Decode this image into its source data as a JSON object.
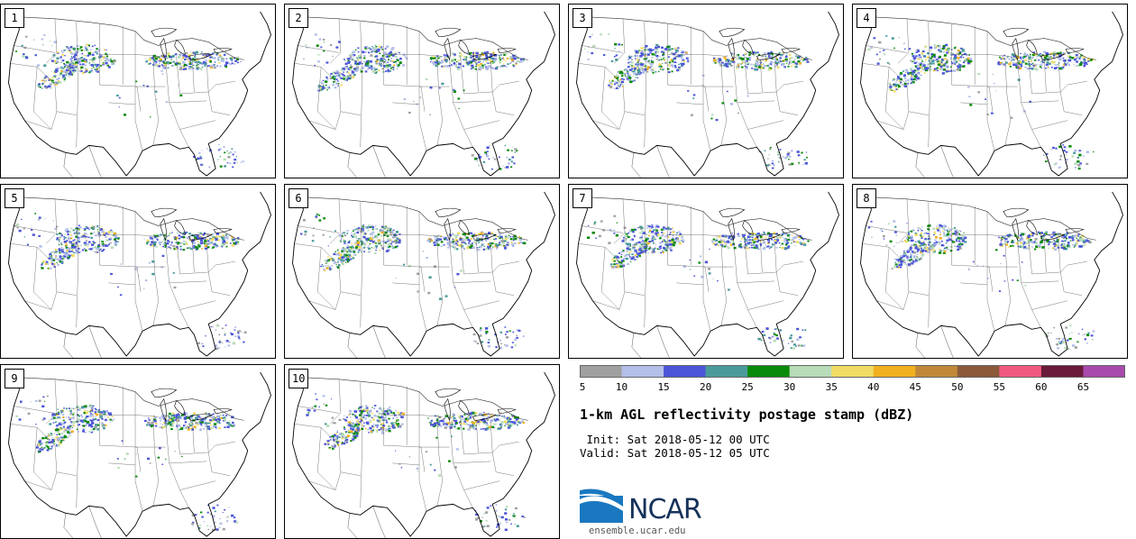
{
  "product": {
    "title": "1-km AGL reflectivity postage stamp (dBZ)",
    "init": " Init: Sat 2018-05-12 00 UTC",
    "valid": "Valid: Sat 2018-05-12 05 UTC"
  },
  "members": [
    {
      "label": "1"
    },
    {
      "label": "2"
    },
    {
      "label": "3"
    },
    {
      "label": "4"
    },
    {
      "label": "5"
    },
    {
      "label": "6"
    },
    {
      "label": "7"
    },
    {
      "label": "8"
    },
    {
      "label": "9"
    },
    {
      "label": "10"
    }
  ],
  "colorbar": {
    "tick_labels": [
      "5",
      "10",
      "15",
      "20",
      "25",
      "30",
      "35",
      "40",
      "45",
      "50",
      "55",
      "60",
      "65"
    ],
    "bins": [
      {
        "from": 5,
        "to": 10,
        "color": "#a0a0a0"
      },
      {
        "from": 10,
        "to": 15,
        "color": "#b4bfe8"
      },
      {
        "from": 15,
        "to": 20,
        "color": "#4c55d8"
      },
      {
        "from": 20,
        "to": 25,
        "color": "#4a9a9a"
      },
      {
        "from": 25,
        "to": 30,
        "color": "#0a8a0a"
      },
      {
        "from": 30,
        "to": 35,
        "color": "#b8dcb8"
      },
      {
        "from": 35,
        "to": 40,
        "color": "#f0dc64"
      },
      {
        "from": 40,
        "to": 45,
        "color": "#f0b020"
      },
      {
        "from": 45,
        "to": 50,
        "color": "#c08838"
      },
      {
        "from": 50,
        "to": 55,
        "color": "#8a5a3a"
      },
      {
        "from": 55,
        "to": 60,
        "color": "#f05a80"
      },
      {
        "from": 60,
        "to": 65,
        "color": "#6a1a3a"
      },
      {
        "from": 65,
        "to": 70,
        "color": "#a84aac"
      }
    ]
  },
  "logo": {
    "text": "NCAR",
    "url": "ensemble.ucar.edu"
  }
}
